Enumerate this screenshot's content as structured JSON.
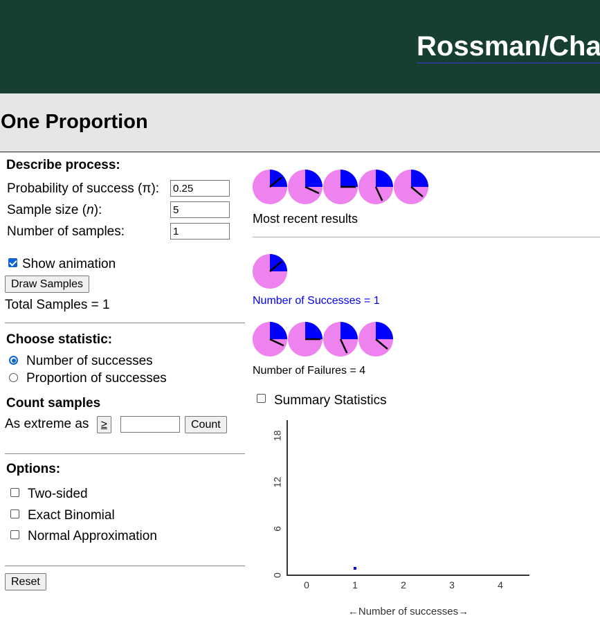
{
  "header": {
    "banner_title": "Rossman/Cha",
    "page_title": "One Proportion"
  },
  "process": {
    "heading": "Describe process:",
    "prob_label": "Probability of success (π):",
    "prob_value": "0.25",
    "size_label_pre": "Sample size (",
    "size_label_var": "n",
    "size_label_post": "):",
    "size_value": "5",
    "samples_label": "Number of samples:",
    "samples_value": "1"
  },
  "animation": {
    "show_label": "Show animation",
    "checked": true
  },
  "draw_button": "Draw Samples",
  "total_samples": "Total Samples = 1",
  "statistic": {
    "heading": "Choose statistic:",
    "options": [
      {
        "label": "Number of successes",
        "selected": true
      },
      {
        "label": "Proportion of successes",
        "selected": false
      }
    ]
  },
  "count": {
    "heading": "Count samples",
    "extreme_label": "As extreme as",
    "operator": "≥",
    "value": "",
    "button": "Count"
  },
  "options": {
    "heading": "Options:",
    "items": [
      {
        "label": "Two-sided",
        "checked": false
      },
      {
        "label": "Exact Binomial",
        "checked": false
      },
      {
        "label": "Normal Approximation",
        "checked": false
      }
    ]
  },
  "reset_button": "Reset",
  "results": {
    "recent_label": "Most recent results",
    "success_label": "Number of Successes = 1",
    "failure_label": "Number of Failures = 4",
    "success_color": "#0000ee",
    "summary_label": "Summary Statistics",
    "summary_checked": false
  },
  "spinners": {
    "fill_color": "#0000ff",
    "base_color": "#ee82ee",
    "recent_needles_deg": [
      50,
      115,
      90,
      155,
      130
    ],
    "success_needles_deg": [
      50
    ],
    "failure_needles_deg": [
      115,
      90,
      155,
      130
    ]
  },
  "chart_data": {
    "type": "scatter",
    "x": [
      1
    ],
    "y": [
      1
    ],
    "xticks": [
      "0",
      "1",
      "2",
      "3",
      "4"
    ],
    "yticks": [
      "0",
      "6",
      "12",
      "18"
    ],
    "xlim": [
      -0.4,
      4.6
    ],
    "ylim": [
      0,
      20
    ],
    "xlabel": "←Number of successes→",
    "point_color": "#0000ff"
  }
}
